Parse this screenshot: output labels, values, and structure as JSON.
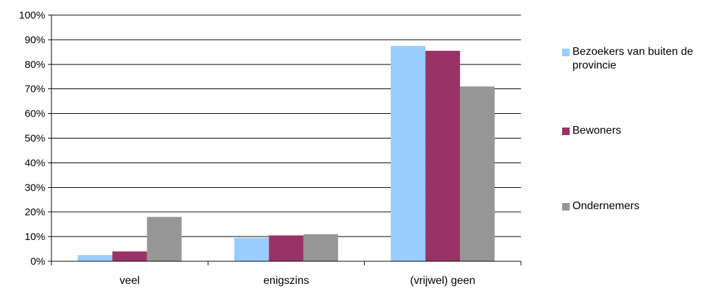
{
  "chart_data": {
    "type": "bar",
    "categories": [
      "veel",
      "enigszins",
      "(vrijwel) geen"
    ],
    "series": [
      {
        "name": "Bezoekers van buiten de provincie",
        "values": [
          2.5,
          9.5,
          87.5
        ],
        "color": "#99ccff"
      },
      {
        "name": "Bewoners",
        "values": [
          4,
          10.5,
          85.5
        ],
        "color": "#993366"
      },
      {
        "name": "Ondernemers",
        "values": [
          18,
          11,
          71
        ],
        "color": "#969696"
      }
    ],
    "ylim": [
      0,
      100
    ],
    "yticks": [
      "0%",
      "10%",
      "20%",
      "30%",
      "40%",
      "50%",
      "60%",
      "70%",
      "80%",
      "90%",
      "100%"
    ],
    "grid": true,
    "legend_position": "right"
  }
}
